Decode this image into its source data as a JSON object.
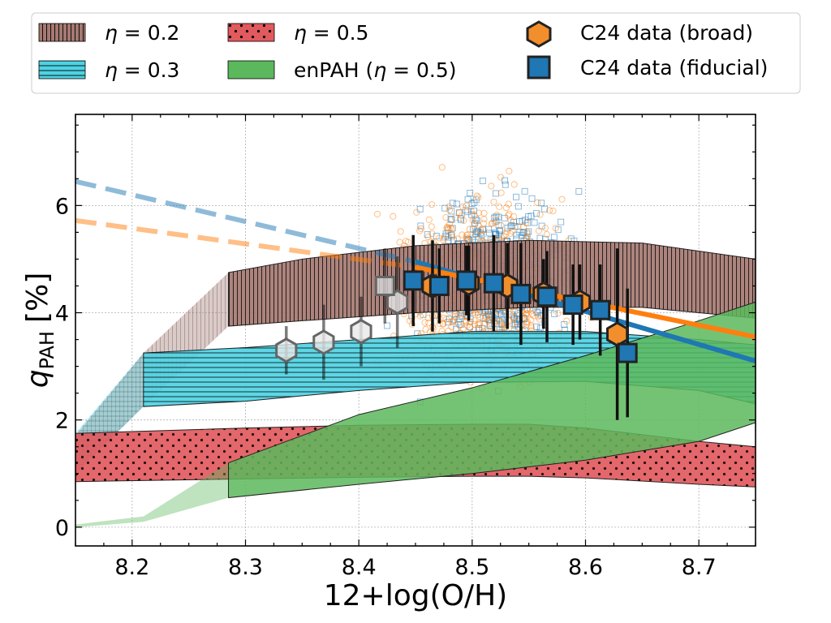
{
  "chart_data": {
    "type": "line",
    "title": "",
    "xlabel": "12+log(O/H)",
    "ylabel": "q_PAH [%]",
    "ylabel_main": "q",
    "ylabel_sub": "PAH",
    "ylabel_unit": "[%]",
    "xlim": [
      8.15,
      8.75
    ],
    "ylim": [
      -0.35,
      7.7
    ],
    "xticks": [
      8.2,
      8.3,
      8.4,
      8.5,
      8.6,
      8.7
    ],
    "xtick_labels": [
      "8.2",
      "8.3",
      "8.4",
      "8.5",
      "8.6",
      "8.7"
    ],
    "yticks": [
      0,
      2,
      4,
      6
    ],
    "ytick_labels": [
      "0",
      "2",
      "4",
      "6"
    ],
    "grid": true,
    "legend_position": "top, outside plot",
    "legend": {
      "eta02": {
        "label_prefix": "η",
        "label_value": " = 0.2"
      },
      "eta03": {
        "label_prefix": "η",
        "label_value": " = 0.3"
      },
      "eta05": {
        "label_prefix": "η",
        "label_value": " = 0.5"
      },
      "enpah": {
        "label_pre": "enPAH (",
        "label_eta": "η",
        "label_post": " = 0.5)"
      },
      "broad": {
        "label": "C24 data (broad)"
      },
      "fiducial": {
        "label": "C24 data (fiducial)"
      }
    },
    "bands": [
      {
        "name": "eta=0.2",
        "color": "#a57a72",
        "hatch": "vertical",
        "x": [
          8.15,
          8.21,
          8.285,
          8.35,
          8.45,
          8.55,
          8.65,
          8.75
        ],
        "upper": [
          1.7,
          3.25,
          4.75,
          5.0,
          5.25,
          5.35,
          5.3,
          5.0
        ],
        "lower": [
          1.0,
          2.25,
          3.75,
          3.85,
          4.0,
          4.1,
          4.1,
          3.9
        ]
      },
      {
        "name": "eta=0.3",
        "color": "#4fd2e3",
        "hatch": "horizontal",
        "x": [
          8.15,
          8.21,
          8.3,
          8.4,
          8.5,
          8.6,
          8.7,
          8.75
        ],
        "upper": [
          1.75,
          3.25,
          3.35,
          3.5,
          3.65,
          3.65,
          3.5,
          3.4
        ],
        "lower": [
          1.0,
          2.25,
          2.35,
          2.55,
          2.7,
          2.72,
          2.55,
          2.3
        ]
      },
      {
        "name": "eta=0.5",
        "color": "#e15a5e",
        "hatch": "dots",
        "x": [
          8.15,
          8.3,
          8.4,
          8.5,
          8.55,
          8.6,
          8.7,
          8.75
        ],
        "upper": [
          1.75,
          1.85,
          1.9,
          1.92,
          1.92,
          1.85,
          1.6,
          1.5
        ],
        "lower": [
          0.85,
          0.9,
          0.93,
          0.95,
          0.95,
          0.92,
          0.8,
          0.75
        ]
      },
      {
        "name": "enPAH (eta=0.5)",
        "color": "#5cb85c",
        "hatch": "none",
        "x": [
          8.15,
          8.21,
          8.285,
          8.4,
          8.5,
          8.6,
          8.7,
          8.75
        ],
        "upper": [
          0.05,
          0.2,
          1.2,
          2.1,
          2.6,
          3.2,
          3.85,
          4.2
        ],
        "lower": [
          0.0,
          0.1,
          0.55,
          0.8,
          1.0,
          1.25,
          1.6,
          1.95
        ]
      }
    ],
    "trend_lines": [
      {
        "name": "fiducial trend",
        "color": "#1f77b4",
        "x_dashed": [
          8.15,
          8.45
        ],
        "y_dashed": [
          6.45,
          4.95
        ],
        "x_solid": [
          8.45,
          8.75
        ],
        "y_solid": [
          4.95,
          3.1
        ]
      },
      {
        "name": "broad trend",
        "color": "#ff7f0e",
        "x_dashed": [
          8.15,
          8.45
        ],
        "y_dashed": [
          5.72,
          4.85
        ],
        "x_solid": [
          8.45,
          8.75
        ],
        "y_solid": [
          4.85,
          3.55
        ]
      }
    ],
    "series": [
      {
        "name": "C24 data (broad)",
        "marker": "hexagon",
        "color": "#f28e2b",
        "points": [
          {
            "x": 8.336,
            "y": 3.3,
            "err": 0.45,
            "faded": true
          },
          {
            "x": 8.369,
            "y": 3.45,
            "err": 0.7,
            "faded": true
          },
          {
            "x": 8.402,
            "y": 3.65,
            "err": 0.65,
            "faded": true
          },
          {
            "x": 8.434,
            "y": 4.2,
            "err": 0.85,
            "faded": true
          },
          {
            "x": 8.465,
            "y": 4.5,
            "err": 0.85,
            "faded": false
          },
          {
            "x": 8.497,
            "y": 4.55,
            "err": 0.7,
            "faded": false
          },
          {
            "x": 8.531,
            "y": 4.5,
            "err": 0.8,
            "faded": false
          },
          {
            "x": 8.563,
            "y": 4.35,
            "err": 0.65,
            "faded": false
          },
          {
            "x": 8.595,
            "y": 4.2,
            "err": 0.7,
            "faded": false
          },
          {
            "x": 8.628,
            "y": 3.6,
            "err": 1.6,
            "faded": false
          }
        ]
      },
      {
        "name": "C24 data (fiducial)",
        "marker": "square",
        "color": "#1f77b4",
        "points": [
          {
            "x": 8.423,
            "y": 4.5,
            "err": 0.7,
            "faded": true
          },
          {
            "x": 8.448,
            "y": 4.6,
            "err": 0.85,
            "faded": false
          },
          {
            "x": 8.471,
            "y": 4.5,
            "err": 0.7,
            "faded": false
          },
          {
            "x": 8.495,
            "y": 4.6,
            "err": 0.65,
            "faded": false
          },
          {
            "x": 8.519,
            "y": 4.55,
            "err": 0.9,
            "faded": false
          },
          {
            "x": 8.543,
            "y": 4.35,
            "err": 0.95,
            "faded": false
          },
          {
            "x": 8.566,
            "y": 4.3,
            "err": 0.85,
            "faded": false
          },
          {
            "x": 8.589,
            "y": 4.15,
            "err": 0.75,
            "faded": false
          },
          {
            "x": 8.613,
            "y": 4.05,
            "err": 0.85,
            "faded": false
          },
          {
            "x": 8.637,
            "y": 3.25,
            "err": 1.2,
            "faded": false
          }
        ]
      }
    ],
    "background_scatter": [
      {
        "name": "fiducial individual",
        "color": "#1f77b4",
        "marker": "open-square",
        "count": 700,
        "x_center": 8.52,
        "x_sd": 0.045,
        "y_center": 4.6,
        "y_sd": 0.95
      },
      {
        "name": "broad individual",
        "color": "#ff7f0e",
        "marker": "open-circle",
        "count": 750,
        "x_center": 8.51,
        "x_sd": 0.05,
        "y_center": 4.5,
        "y_sd": 1.05
      }
    ]
  }
}
